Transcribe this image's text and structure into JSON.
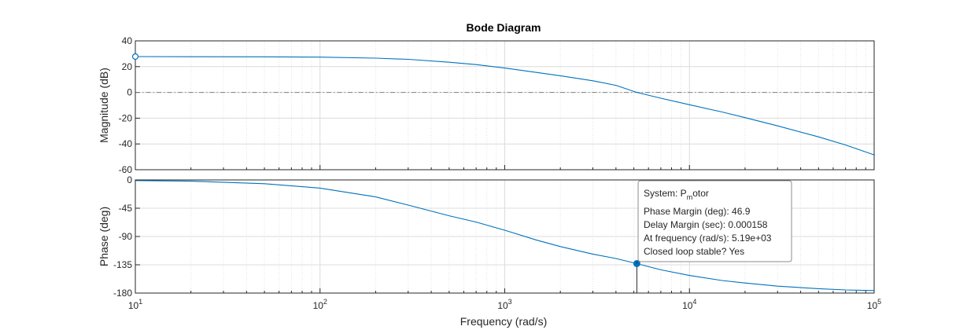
{
  "chart_data": {
    "type": "line",
    "title": "Bode Diagram",
    "xlabel": "Frequency  (rad/s)",
    "x_scale": "log",
    "xlim": [
      10,
      100000
    ],
    "x_ticks": [
      {
        "value": 10,
        "base": "10",
        "exp": "1"
      },
      {
        "value": 100,
        "base": "10",
        "exp": "2"
      },
      {
        "value": 1000,
        "base": "10",
        "exp": "3"
      },
      {
        "value": 10000,
        "base": "10",
        "exp": "4"
      },
      {
        "value": 100000,
        "base": "10",
        "exp": "5"
      }
    ],
    "grid": true,
    "line_color": "#0072BD",
    "reference_line_color": "#7f7f7f",
    "panels": [
      {
        "id": "magnitude",
        "ylabel": "Magnitude (dB)",
        "ylim": [
          -60,
          40
        ],
        "y_ticks": [
          "40",
          "20",
          "0",
          "-20",
          "-40",
          "-60"
        ],
        "y_tick_values": [
          40,
          20,
          0,
          -20,
          -40,
          -60
        ],
        "reference_y": 0,
        "series": [
          {
            "x": [
              10,
              20,
              50,
              100,
              200,
              300,
              500,
              700,
              1000,
              1500,
              2000,
              3000,
              4000,
              5190,
              7000,
              10000,
              15000,
              20000,
              30000,
              50000,
              70000,
              100000
            ],
            "y": [
              27.8,
              27.7,
              27.6,
              27.4,
              26.6,
              25.7,
              23.4,
              21.6,
              18.9,
              15.4,
              12.9,
              9.0,
              5.5,
              0,
              -4.5,
              -9.6,
              -15.2,
              -19.6,
              -26.0,
              -34.5,
              -40.8,
              -48.5
            ]
          }
        ],
        "marker": {
          "x": 10,
          "y": 27.8
        }
      },
      {
        "id": "phase",
        "ylabel": "Phase (deg)",
        "ylim": [
          -180,
          0
        ],
        "y_ticks": [
          "0",
          "-45",
          "-90",
          "-135",
          "-180"
        ],
        "y_tick_values": [
          0,
          -45,
          -90,
          -135,
          -180
        ],
        "reference_y": -180,
        "series": [
          {
            "x": [
              10,
              20,
              50,
              100,
              200,
              300,
              500,
              700,
              1000,
              1500,
              2000,
              3000,
              4000,
              5190,
              7000,
              10000,
              15000,
              20000,
              30000,
              50000,
              70000,
              100000
            ],
            "y": [
              -1,
              -2,
              -6,
              -13,
              -27,
              -40,
              -57,
              -67,
              -80,
              -96,
              -106,
              -118,
              -125,
              -133.1,
              -143,
              -152,
              -160,
              -164,
              -169,
              -173,
              -175,
              -176
            ]
          }
        ],
        "marker": {
          "x": 5190,
          "y": -133.1
        }
      }
    ],
    "datatip": {
      "system_label": "System: P",
      "system_subscript": "m",
      "system_suffix": "otor",
      "phase_margin": "Phase Margin (deg): 46.9",
      "delay_margin": "Delay Margin (sec): 0.000158",
      "frequency": "At frequency (rad/s): 5.19e+03",
      "stable": "Closed loop stable? Yes"
    }
  }
}
